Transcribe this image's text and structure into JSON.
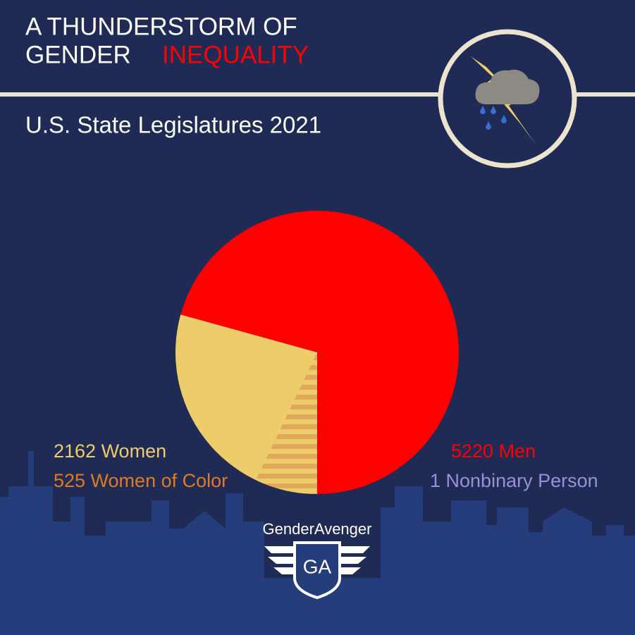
{
  "chart_data": {
    "type": "pie",
    "title_lines": [
      "A THUNDERSTORM OF",
      "GENDER"
    ],
    "title_highlight": "INEQUALITY",
    "subtitle": "U.S. State Legislatures 2021",
    "start_angle": 180,
    "direction": "counterclockwise",
    "slices": [
      {
        "value": 5220,
        "label": "5220 Men",
        "color": "#ff0000",
        "label_color": "#ff0000"
      },
      {
        "value": 2162,
        "label": "2162 Women",
        "color": "#edcc6a",
        "label_color": "#edcc6a"
      },
      {
        "value": 1,
        "label": "1 Nonbinary Person",
        "color": "#9b8fd6",
        "label_color": "#9b8fd6"
      }
    ],
    "subset": {
      "value": 525,
      "label": "525 Women of Color",
      "of": "2162 Women",
      "color": "#e0a85a",
      "label_color": "#e07b20"
    }
  },
  "logo": {
    "name": "GenderAvenger",
    "mark": "GA"
  }
}
